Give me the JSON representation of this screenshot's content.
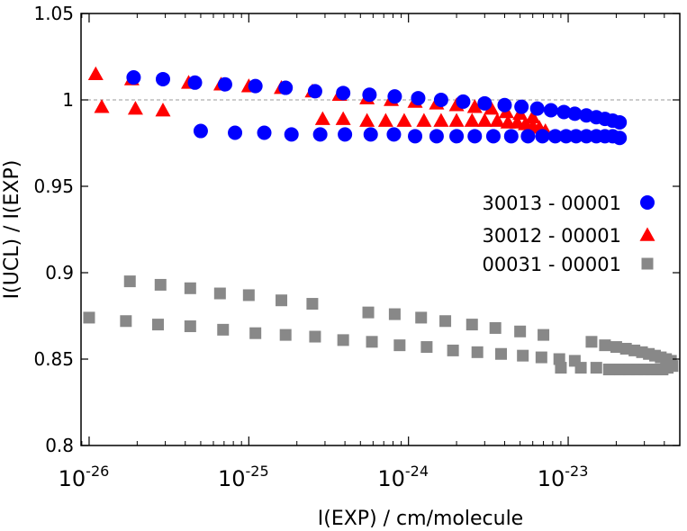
{
  "chart_data": {
    "type": "scatter",
    "xlabel": "I(EXP) / cm/molecule",
    "ylabel": "I(UCL) / I(EXP)",
    "xscale": "log",
    "xlim": [
      8.9e-27,
      5e-23
    ],
    "ylim": [
      0.8,
      1.05
    ],
    "x_ticks": [
      {
        "value": 1e-26,
        "base": "10",
        "exp": "-26"
      },
      {
        "value": 1e-25,
        "base": "10",
        "exp": "-25"
      },
      {
        "value": 1e-24,
        "base": "10",
        "exp": "-24"
      },
      {
        "value": 1e-23,
        "base": "10",
        "exp": "-23"
      }
    ],
    "y_ticks": [
      {
        "value": 0.8,
        "label": "0.8"
      },
      {
        "value": 0.85,
        "label": "0.85"
      },
      {
        "value": 0.9,
        "label": "0.9"
      },
      {
        "value": 0.95,
        "label": "0.95"
      },
      {
        "value": 1.0,
        "label": "1"
      },
      {
        "value": 1.05,
        "label": "1.05"
      }
    ],
    "reference_line": {
      "y": 1.0,
      "style": "dashed",
      "color": "#999999"
    },
    "legend_position": "right-middle",
    "series": [
      {
        "name": "30013 - 00001",
        "marker": "circle",
        "color": "#0000ff",
        "points": [
          [
            1.9e-26,
            1.013
          ],
          [
            2.9e-26,
            1.012
          ],
          [
            4.6e-26,
            1.01
          ],
          [
            7.1e-26,
            1.009
          ],
          [
            1.1e-25,
            1.008
          ],
          [
            1.7e-25,
            1.007
          ],
          [
            2.6e-25,
            1.005
          ],
          [
            3.9e-25,
            1.004
          ],
          [
            5.7e-25,
            1.003
          ],
          [
            8.2e-25,
            1.002
          ],
          [
            1.15e-24,
            1.001
          ],
          [
            1.6e-24,
            1.0
          ],
          [
            2.2e-24,
            0.999
          ],
          [
            3e-24,
            0.998
          ],
          [
            4e-24,
            0.997
          ],
          [
            5.1e-24,
            0.996
          ],
          [
            6.4e-24,
            0.995
          ],
          [
            7.8e-24,
            0.994
          ],
          [
            9.4e-24,
            0.993
          ],
          [
            1.1e-23,
            0.992
          ],
          [
            1.3e-23,
            0.991
          ],
          [
            1.5e-23,
            0.99
          ],
          [
            1.7e-23,
            0.989
          ],
          [
            1.9e-23,
            0.988
          ],
          [
            2.1e-23,
            0.987
          ],
          [
            5e-26,
            0.982
          ],
          [
            8.2e-26,
            0.981
          ],
          [
            1.25e-25,
            0.981
          ],
          [
            1.85e-25,
            0.98
          ],
          [
            2.8e-25,
            0.98
          ],
          [
            4e-25,
            0.98
          ],
          [
            5.8e-25,
            0.98
          ],
          [
            8.1e-25,
            0.98
          ],
          [
            1.1e-24,
            0.979
          ],
          [
            1.5e-24,
            0.979
          ],
          [
            2e-24,
            0.979
          ],
          [
            2.6e-24,
            0.979
          ],
          [
            3.4e-24,
            0.979
          ],
          [
            4.4e-24,
            0.979
          ],
          [
            5.6e-24,
            0.979
          ],
          [
            6.9e-24,
            0.979
          ],
          [
            8.3e-24,
            0.979
          ],
          [
            9.7e-24,
            0.979
          ],
          [
            1.12e-23,
            0.979
          ],
          [
            1.3e-23,
            0.979
          ],
          [
            1.5e-23,
            0.979
          ],
          [
            1.7e-23,
            0.979
          ],
          [
            1.9e-23,
            0.979
          ],
          [
            2.1e-23,
            0.978
          ]
        ]
      },
      {
        "name": "30012 - 00001",
        "marker": "triangle",
        "color": "#ff0000",
        "points": [
          [
            1.1e-26,
            1.015
          ],
          [
            1.85e-26,
            1.012
          ],
          [
            4.2e-26,
            1.01
          ],
          [
            6.7e-26,
            1.009
          ],
          [
            1e-25,
            1.008
          ],
          [
            1.6e-25,
            1.007
          ],
          [
            2.5e-25,
            1.005
          ],
          [
            3.7e-25,
            1.003
          ],
          [
            5.5e-25,
            1.001
          ],
          [
            7.8e-25,
            1.0
          ],
          [
            1.1e-24,
            0.999
          ],
          [
            1.5e-24,
            0.998
          ],
          [
            2e-24,
            0.997
          ],
          [
            2.6e-24,
            0.996
          ],
          [
            3.3e-24,
            0.995
          ],
          [
            4.1e-24,
            0.993
          ],
          [
            5e-24,
            0.992
          ],
          [
            6e-24,
            0.99
          ],
          [
            1.2e-26,
            0.996
          ],
          [
            1.95e-26,
            0.995
          ],
          [
            2.9e-26,
            0.994
          ],
          [
            2.9e-25,
            0.989
          ],
          [
            3.9e-25,
            0.989
          ],
          [
            5.5e-25,
            0.988
          ],
          [
            7.2e-25,
            0.988
          ],
          [
            9.4e-25,
            0.988
          ],
          [
            1.25e-24,
            0.988
          ],
          [
            1.6e-24,
            0.988
          ],
          [
            2e-24,
            0.988
          ],
          [
            2.5e-24,
            0.988
          ],
          [
            3e-24,
            0.988
          ],
          [
            3.6e-24,
            0.988
          ],
          [
            4.2e-24,
            0.987
          ],
          [
            4.8e-24,
            0.987
          ],
          [
            5.4e-24,
            0.986
          ],
          [
            6e-24,
            0.985
          ],
          [
            6.6e-24,
            0.984
          ],
          [
            7.2e-24,
            0.982
          ]
        ]
      },
      {
        "name": "00031 - 00001",
        "marker": "square",
        "color": "#888888",
        "points": [
          [
            1.8e-26,
            0.895
          ],
          [
            2.8e-26,
            0.893
          ],
          [
            4.3e-26,
            0.891
          ],
          [
            6.6e-26,
            0.888
          ],
          [
            1e-25,
            0.887
          ],
          [
            1.6e-25,
            0.884
          ],
          [
            2.5e-25,
            0.882
          ],
          [
            5.6e-25,
            0.877
          ],
          [
            8.2e-25,
            0.876
          ],
          [
            1.2e-24,
            0.874
          ],
          [
            1.7e-24,
            0.872
          ],
          [
            2.5e-24,
            0.87
          ],
          [
            3.5e-24,
            0.868
          ],
          [
            5e-24,
            0.866
          ],
          [
            7e-24,
            0.864
          ],
          [
            1e-26,
            0.874
          ],
          [
            1.7e-26,
            0.872
          ],
          [
            2.7e-26,
            0.87
          ],
          [
            4.3e-26,
            0.869
          ],
          [
            6.9e-26,
            0.867
          ],
          [
            1.1e-25,
            0.865
          ],
          [
            1.7e-25,
            0.864
          ],
          [
            2.6e-25,
            0.863
          ],
          [
            3.9e-25,
            0.861
          ],
          [
            5.9e-25,
            0.86
          ],
          [
            8.8e-25,
            0.858
          ],
          [
            1.3e-24,
            0.857
          ],
          [
            1.9e-24,
            0.855
          ],
          [
            2.7e-24,
            0.854
          ],
          [
            3.8e-24,
            0.853
          ],
          [
            5.2e-24,
            0.852
          ],
          [
            6.8e-24,
            0.851
          ],
          [
            8.8e-24,
            0.85
          ],
          [
            1.1e-23,
            0.849
          ],
          [
            1.4e-23,
            0.86
          ],
          [
            1.7e-23,
            0.858
          ],
          [
            2e-23,
            0.857
          ],
          [
            2.3e-23,
            0.856
          ],
          [
            2.6e-23,
            0.855
          ],
          [
            2.9e-23,
            0.854
          ],
          [
            3.2e-23,
            0.853
          ],
          [
            3.5e-23,
            0.852
          ],
          [
            3.8e-23,
            0.851
          ],
          [
            4.1e-23,
            0.85
          ],
          [
            4.4e-23,
            0.849
          ],
          [
            9e-24,
            0.845
          ],
          [
            1.2e-23,
            0.845
          ],
          [
            1.5e-23,
            0.845
          ],
          [
            1.8e-23,
            0.844
          ],
          [
            2.1e-23,
            0.844
          ],
          [
            2.4e-23,
            0.844
          ],
          [
            2.7e-23,
            0.844
          ],
          [
            3e-23,
            0.844
          ],
          [
            3.3e-23,
            0.844
          ],
          [
            3.6e-23,
            0.844
          ],
          [
            3.9e-23,
            0.844
          ],
          [
            4.2e-23,
            0.845
          ],
          [
            4.5e-23,
            0.846
          ]
        ]
      }
    ]
  }
}
